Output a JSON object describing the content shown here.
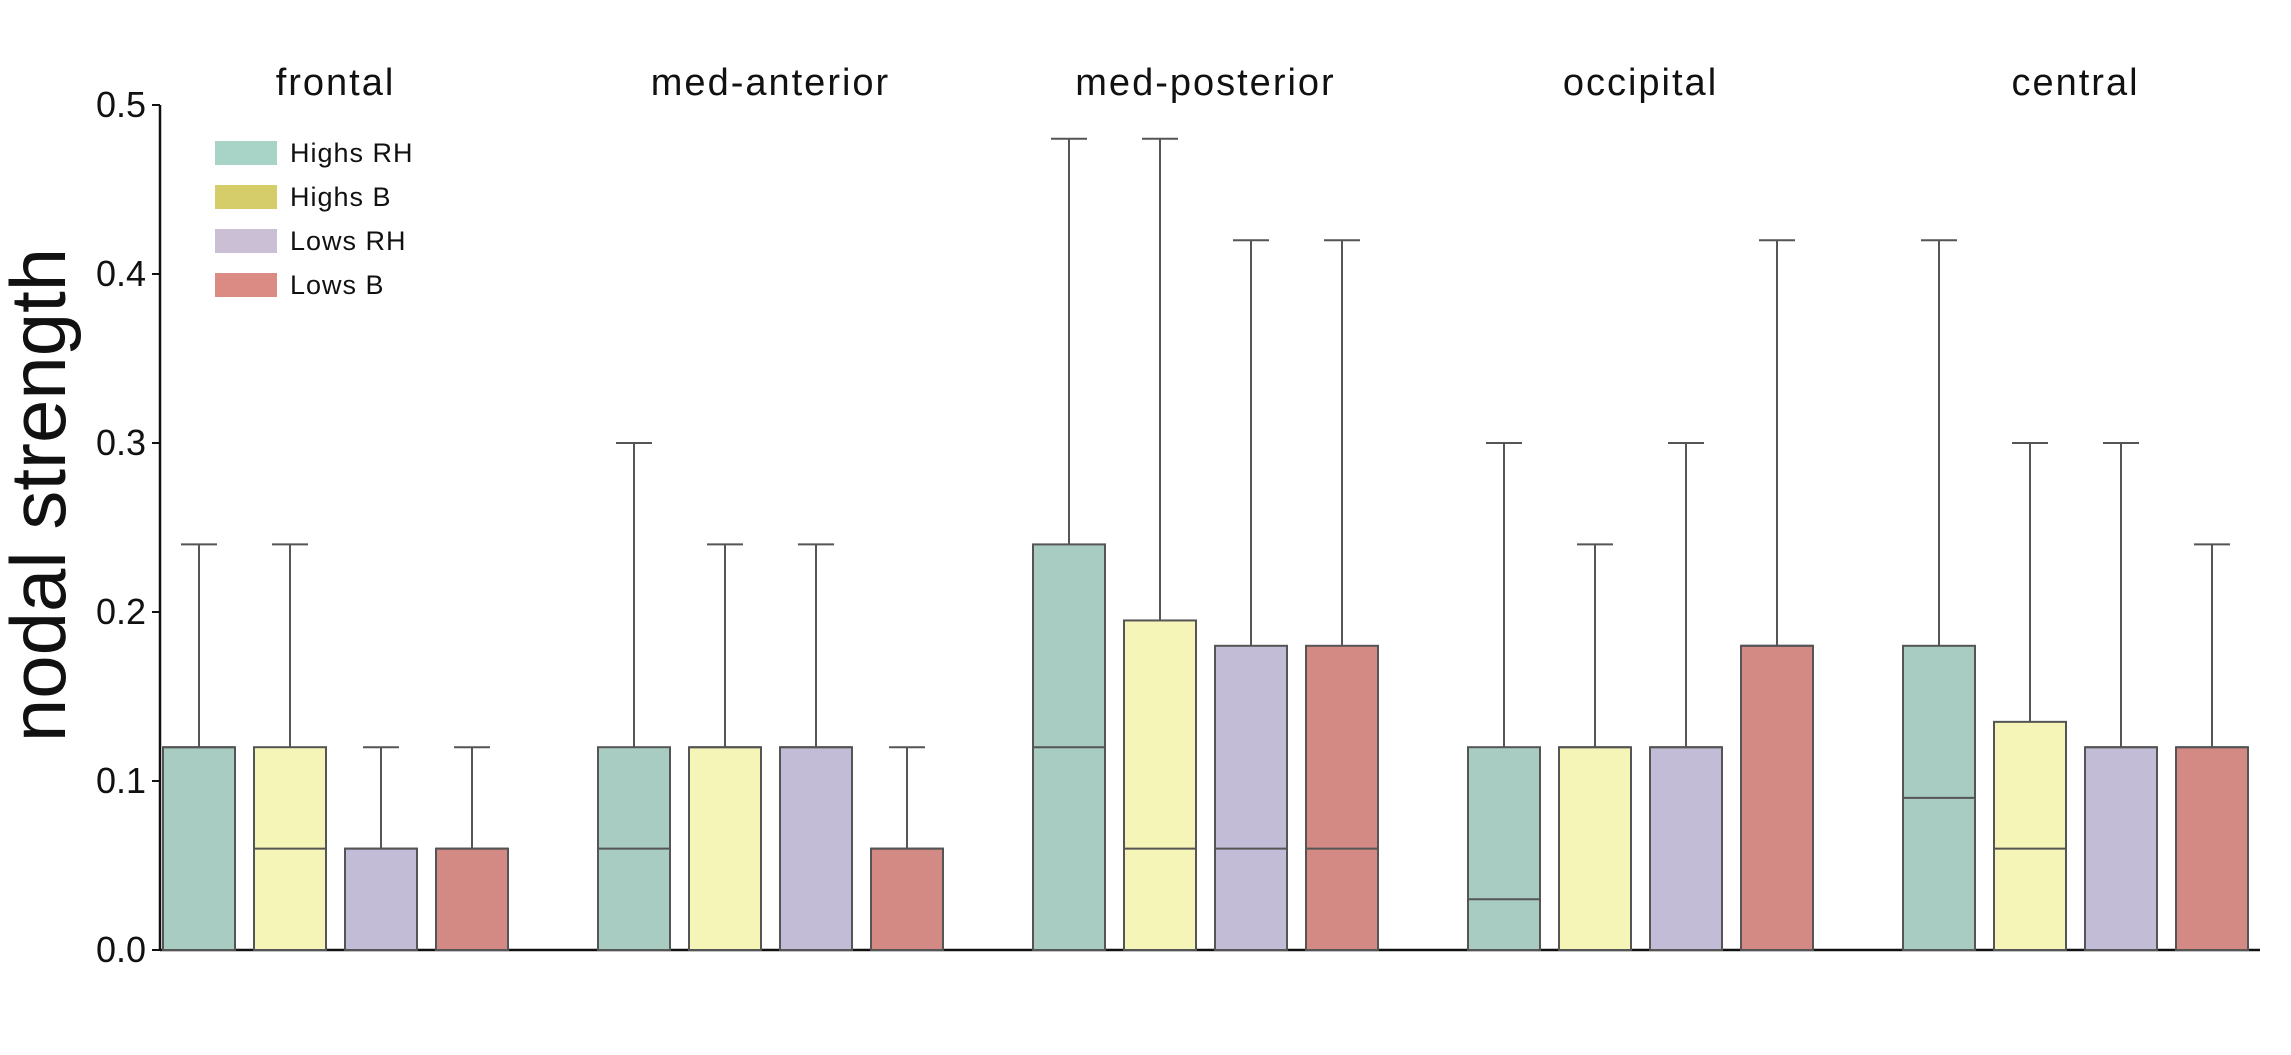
{
  "chart_data": {
    "type": "box",
    "ylabel": "nodal strength",
    "xlabel": "",
    "ylim": [
      0.0,
      0.5
    ],
    "yticks": [
      "0.0",
      "0.1",
      "0.2",
      "0.3",
      "0.4",
      "0.5"
    ],
    "legend_placement": "top-left",
    "grid": false,
    "series": [
      {
        "name": "Highs RH",
        "color": "#a8cbc2"
      },
      {
        "name": "Highs B",
        "color": "#f5f5b8"
      },
      {
        "name": "Lows RH",
        "color": "#c2bcd6"
      },
      {
        "name": "Lows B",
        "color": "#d48a84"
      }
    ],
    "legend_colors": [
      "#a8d4c8",
      "#d4cd6a",
      "#cbbfd6",
      "#dc8a84"
    ],
    "groups": [
      {
        "title": "frontal",
        "boxes": [
          {
            "q1": 0.0,
            "median": 0.12,
            "q3": 0.12,
            "whisker_low": 0.0,
            "whisker_high": 0.24
          },
          {
            "q1": 0.0,
            "median": 0.06,
            "q3": 0.12,
            "whisker_low": 0.0,
            "whisker_high": 0.24
          },
          {
            "q1": 0.0,
            "median": 0.06,
            "q3": 0.06,
            "whisker_low": 0.0,
            "whisker_high": 0.12
          },
          {
            "q1": 0.0,
            "median": 0.06,
            "q3": 0.06,
            "whisker_low": 0.0,
            "whisker_high": 0.12
          }
        ]
      },
      {
        "title": "med-anterior",
        "boxes": [
          {
            "q1": 0.0,
            "median": 0.06,
            "q3": 0.12,
            "whisker_low": 0.0,
            "whisker_high": 0.3
          },
          {
            "q1": 0.0,
            "median": 0.12,
            "q3": 0.12,
            "whisker_low": 0.0,
            "whisker_high": 0.24
          },
          {
            "q1": 0.0,
            "median": 0.12,
            "q3": 0.12,
            "whisker_low": 0.0,
            "whisker_high": 0.24
          },
          {
            "q1": 0.0,
            "median": 0.06,
            "q3": 0.06,
            "whisker_low": 0.0,
            "whisker_high": 0.12
          }
        ]
      },
      {
        "title": "med-posterior",
        "boxes": [
          {
            "q1": 0.0,
            "median": 0.12,
            "q3": 0.24,
            "whisker_low": 0.0,
            "whisker_high": 0.48
          },
          {
            "q1": 0.0,
            "median": 0.06,
            "q3": 0.195,
            "whisker_low": 0.0,
            "whisker_high": 0.48
          },
          {
            "q1": 0.0,
            "median": 0.06,
            "q3": 0.18,
            "whisker_low": 0.0,
            "whisker_high": 0.42
          },
          {
            "q1": 0.0,
            "median": 0.06,
            "q3": 0.18,
            "whisker_low": 0.0,
            "whisker_high": 0.42
          }
        ]
      },
      {
        "title": "occipital",
        "boxes": [
          {
            "q1": 0.0,
            "median": 0.03,
            "q3": 0.12,
            "whisker_low": 0.0,
            "whisker_high": 0.3
          },
          {
            "q1": 0.0,
            "median": 0.12,
            "q3": 0.12,
            "whisker_low": 0.0,
            "whisker_high": 0.24
          },
          {
            "q1": 0.0,
            "median": 0.12,
            "q3": 0.12,
            "whisker_low": 0.0,
            "whisker_high": 0.3
          },
          {
            "q1": 0.0,
            "median": 0.18,
            "q3": 0.18,
            "whisker_low": 0.0,
            "whisker_high": 0.42
          }
        ]
      },
      {
        "title": "central",
        "boxes": [
          {
            "q1": 0.0,
            "median": 0.09,
            "q3": 0.18,
            "whisker_low": 0.0,
            "whisker_high": 0.42
          },
          {
            "q1": 0.0,
            "median": 0.06,
            "q3": 0.135,
            "whisker_low": 0.0,
            "whisker_high": 0.3
          },
          {
            "q1": 0.0,
            "median": 0.12,
            "q3": 0.12,
            "whisker_low": 0.0,
            "whisker_high": 0.3
          },
          {
            "q1": 0.0,
            "median": 0.12,
            "q3": 0.12,
            "whisker_low": 0.0,
            "whisker_high": 0.24
          }
        ]
      }
    ]
  }
}
